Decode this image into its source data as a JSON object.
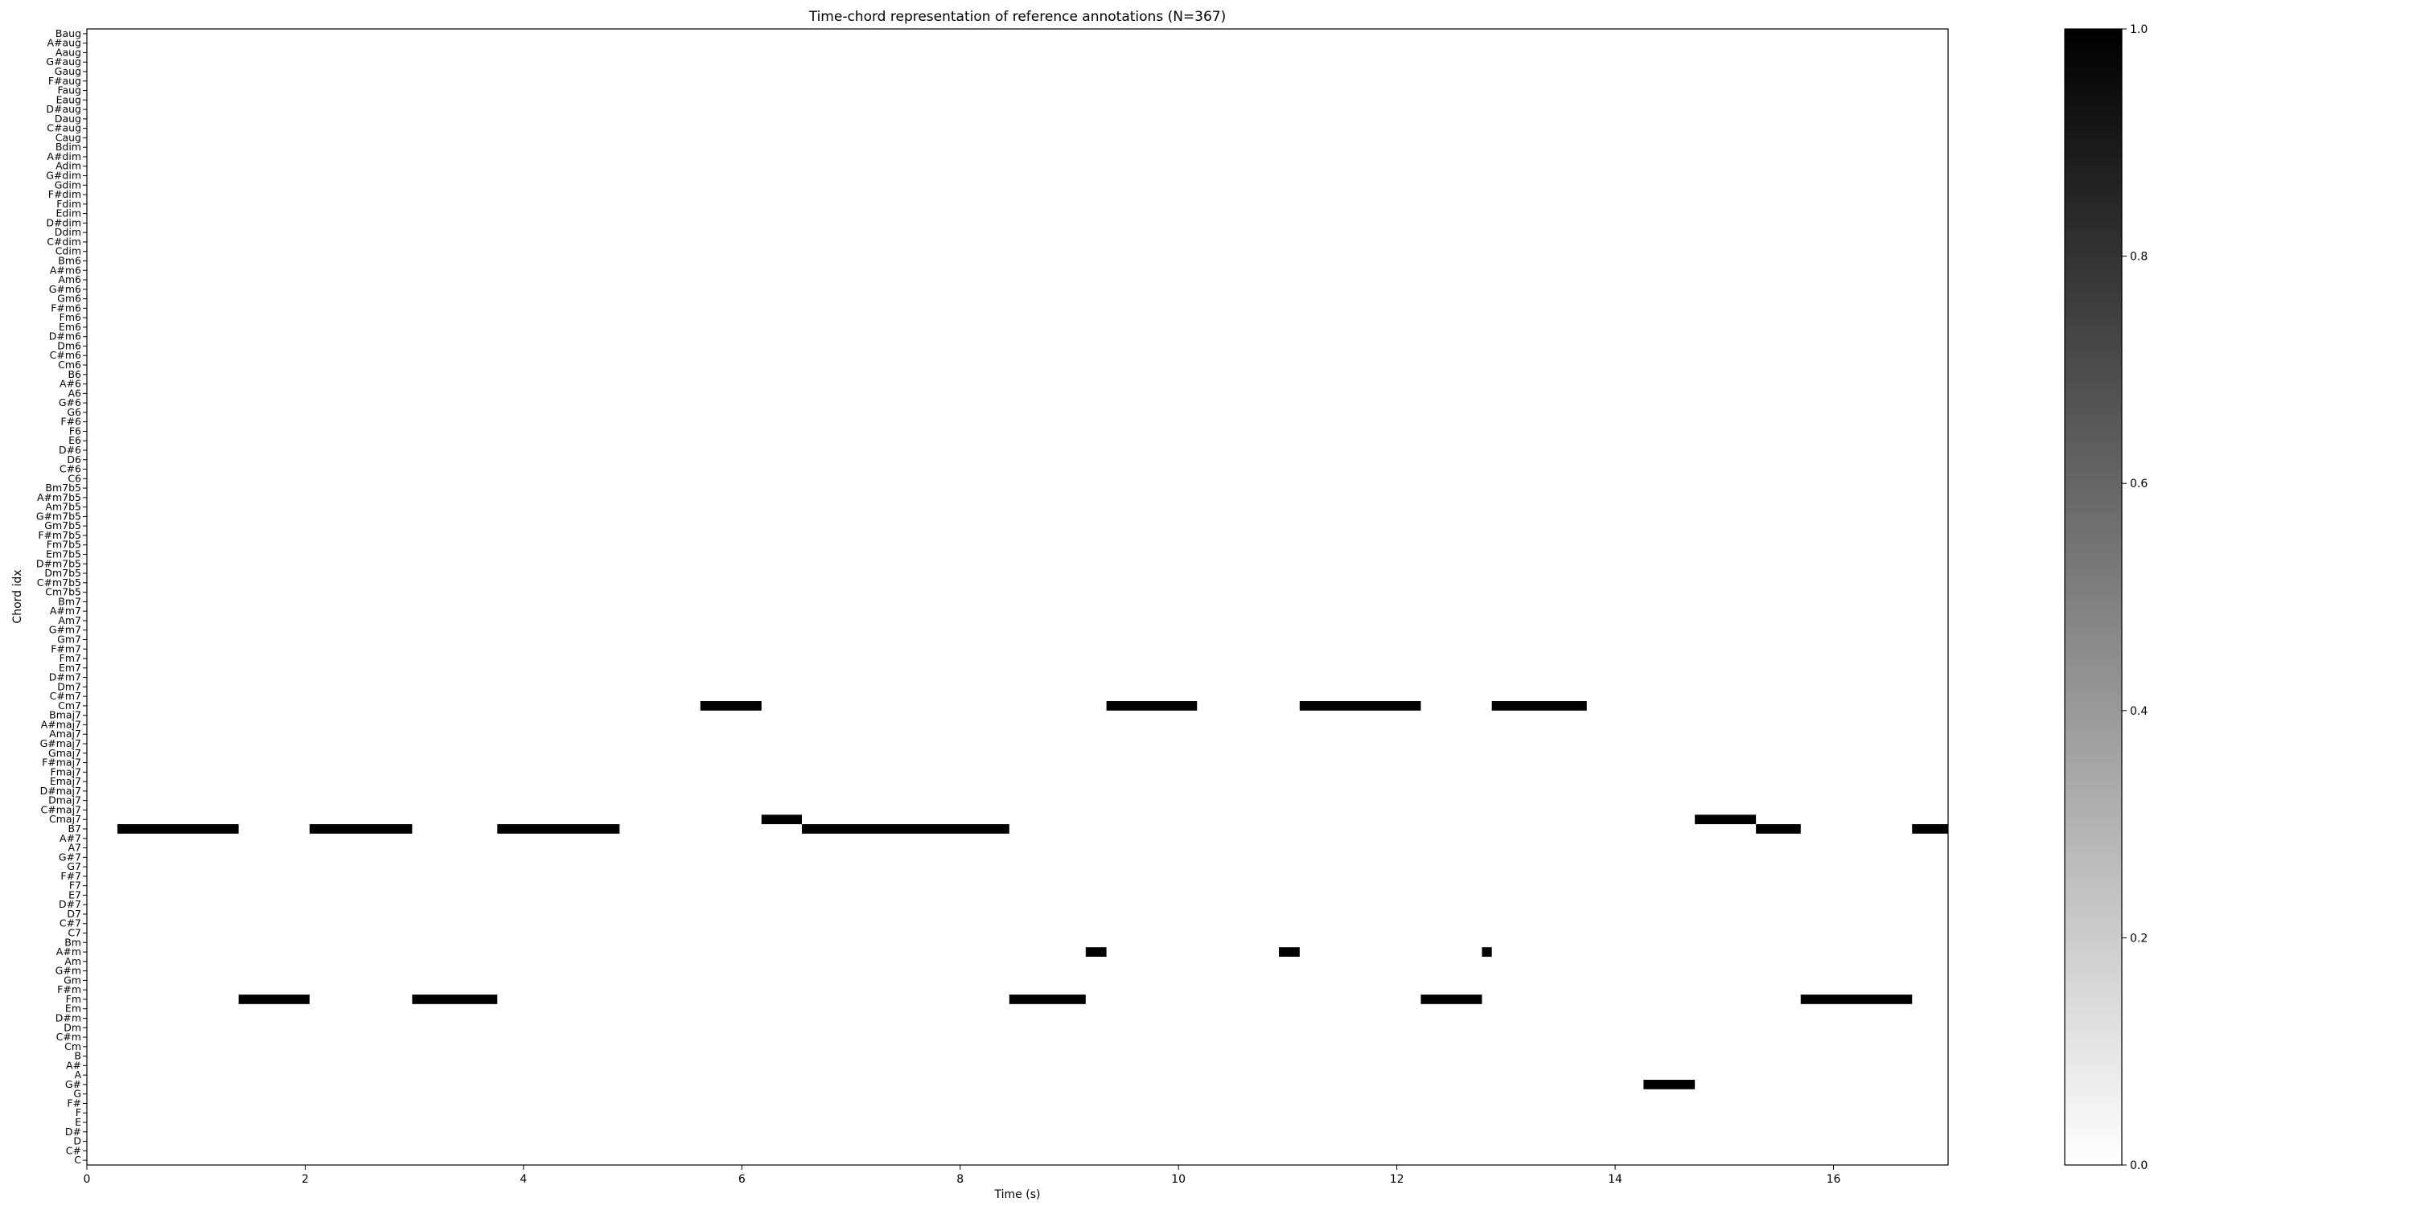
{
  "chart_data": {
    "type": "heatmap",
    "title": "Time-chord representation of reference annotations (N=367)",
    "xlabel": "Time (s)",
    "ylabel": "Chord idx",
    "xlim": [
      0,
      17.05
    ],
    "x_ticks": [
      0,
      2,
      4,
      6,
      8,
      10,
      12,
      14,
      16
    ],
    "colormap": "gray_r",
    "colorbar": {
      "range": [
        0,
        1
      ],
      "ticks": [
        "0.0",
        "0.2",
        "0.4",
        "0.6",
        "0.8",
        "1.0"
      ]
    },
    "chords": [
      "C",
      "C#",
      "D",
      "D#",
      "E",
      "F",
      "F#",
      "G",
      "G#",
      "A",
      "A#",
      "B",
      "Cm",
      "C#m",
      "Dm",
      "D#m",
      "Em",
      "Fm",
      "F#m",
      "Gm",
      "G#m",
      "Am",
      "A#m",
      "Bm",
      "C7",
      "C#7",
      "D7",
      "D#7",
      "E7",
      "F7",
      "F#7",
      "G7",
      "G#7",
      "A7",
      "A#7",
      "B7",
      "Cmaj7",
      "C#maj7",
      "Dmaj7",
      "D#maj7",
      "Emaj7",
      "Fmaj7",
      "F#maj7",
      "Gmaj7",
      "G#maj7",
      "Amaj7",
      "A#maj7",
      "Bmaj7",
      "Cm7",
      "C#m7",
      "Dm7",
      "D#m7",
      "Em7",
      "Fm7",
      "F#m7",
      "Gm7",
      "G#m7",
      "Am7",
      "A#m7",
      "Bm7",
      "Cm7b5",
      "C#m7b5",
      "Dm7b5",
      "D#m7b5",
      "Em7b5",
      "Fm7b5",
      "F#m7b5",
      "Gm7b5",
      "G#m7b5",
      "Am7b5",
      "A#m7b5",
      "Bm7b5",
      "C6",
      "C#6",
      "D6",
      "D#6",
      "E6",
      "F6",
      "F#6",
      "G6",
      "G#6",
      "A6",
      "A#6",
      "B6",
      "Cm6",
      "C#m6",
      "Dm6",
      "D#m6",
      "Em6",
      "Fm6",
      "F#m6",
      "Gm6",
      "G#m6",
      "Am6",
      "A#m6",
      "Bm6",
      "Cdim",
      "C#dim",
      "Ddim",
      "D#dim",
      "Edim",
      "Fdim",
      "F#dim",
      "Gdim",
      "G#dim",
      "Adim",
      "A#dim",
      "Bdim",
      "Caug",
      "C#aug",
      "Daug",
      "D#aug",
      "Eaug",
      "Faug",
      "F#aug",
      "Gaug",
      "G#aug",
      "Aaug",
      "A#aug",
      "Baug"
    ],
    "segments": [
      {
        "chord": "B7",
        "start": 0.28,
        "end": 1.39
      },
      {
        "chord": "Fm",
        "start": 1.39,
        "end": 2.04
      },
      {
        "chord": "B7",
        "start": 2.04,
        "end": 2.98
      },
      {
        "chord": "Fm",
        "start": 2.98,
        "end": 3.76
      },
      {
        "chord": "B7",
        "start": 3.76,
        "end": 4.88
      },
      {
        "chord": "Cm7",
        "start": 5.62,
        "end": 6.18
      },
      {
        "chord": "Cmaj7",
        "start": 6.18,
        "end": 6.55
      },
      {
        "chord": "B7",
        "start": 6.55,
        "end": 8.45
      },
      {
        "chord": "Fm",
        "start": 8.45,
        "end": 9.15
      },
      {
        "chord": "A#m",
        "start": 9.15,
        "end": 9.34
      },
      {
        "chord": "Cm7",
        "start": 9.34,
        "end": 10.17
      },
      {
        "chord": "A#m",
        "start": 10.92,
        "end": 11.11
      },
      {
        "chord": "Cm7",
        "start": 11.11,
        "end": 12.22
      },
      {
        "chord": "Fm",
        "start": 12.22,
        "end": 12.78
      },
      {
        "chord": "A#m",
        "start": 12.78,
        "end": 12.87
      },
      {
        "chord": "Cm7",
        "start": 12.87,
        "end": 13.74
      },
      {
        "chord": "G#",
        "start": 14.26,
        "end": 14.73
      },
      {
        "chord": "Cmaj7",
        "start": 14.73,
        "end": 15.29
      },
      {
        "chord": "B7",
        "start": 15.29,
        "end": 15.7
      },
      {
        "chord": "Fm",
        "start": 15.7,
        "end": 16.72
      },
      {
        "chord": "B7",
        "start": 16.72,
        "end": 17.05
      }
    ]
  }
}
